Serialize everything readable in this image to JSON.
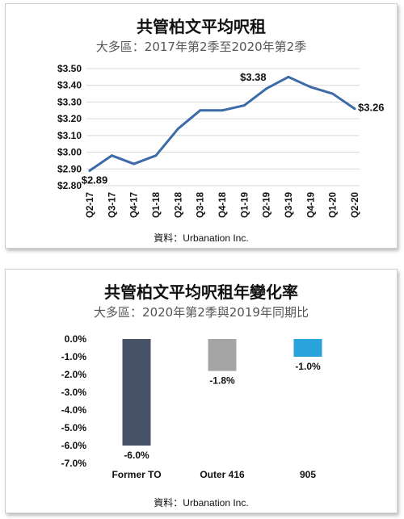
{
  "chart_data": [
    {
      "type": "line",
      "title": "共管柏文平均呎租",
      "subtitle": "大多區：2017年第2季至2020年第2季",
      "source": "資料：Urbanation Inc.",
      "categories": [
        "Q2-17",
        "Q3-17",
        "Q4-17",
        "Q1-18",
        "Q2-18",
        "Q3-18",
        "Q4-18",
        "Q1-19",
        "Q2-19",
        "Q3-19",
        "Q4-19",
        "Q1-20",
        "Q2-20"
      ],
      "series": [
        {
          "values": [
            2.89,
            2.98,
            2.93,
            2.98,
            3.14,
            3.25,
            3.25,
            3.28,
            3.38,
            3.45,
            3.39,
            3.35,
            3.26
          ]
        }
      ],
      "y_ticks": [
        "$2.80",
        "$2.90",
        "$3.00",
        "$3.10",
        "$3.20",
        "$3.30",
        "$3.40",
        "$3.50"
      ],
      "ylim": [
        2.8,
        3.5
      ],
      "grid": true,
      "data_labels": [
        {
          "index": 0,
          "text": "$2.89"
        },
        {
          "index": 8,
          "text": "$3.38"
        },
        {
          "index": 12,
          "text": "$3.26"
        }
      ],
      "line_color": "#3d6aa8"
    },
    {
      "type": "bar",
      "title": "共管柏文平均呎租年變化率",
      "subtitle": "大多區：2020年第2季與2019年同期比",
      "source": "資料：Urbanation Inc.",
      "categories": [
        "Former TO",
        "Outer 416",
        "905"
      ],
      "values": [
        -6.0,
        -1.8,
        -1.0
      ],
      "value_labels": [
        "-6.0%",
        "-1.8%",
        "-1.0%"
      ],
      "colors": [
        "#475266",
        "#a5a5a5",
        "#2aa3dc"
      ],
      "y_ticks": [
        "0.0%",
        "-1.0%",
        "-2.0%",
        "-3.0%",
        "-4.0%",
        "-5.0%",
        "-6.0%",
        "-7.0%"
      ],
      "ylim": [
        -7,
        0
      ],
      "grid": false
    }
  ]
}
